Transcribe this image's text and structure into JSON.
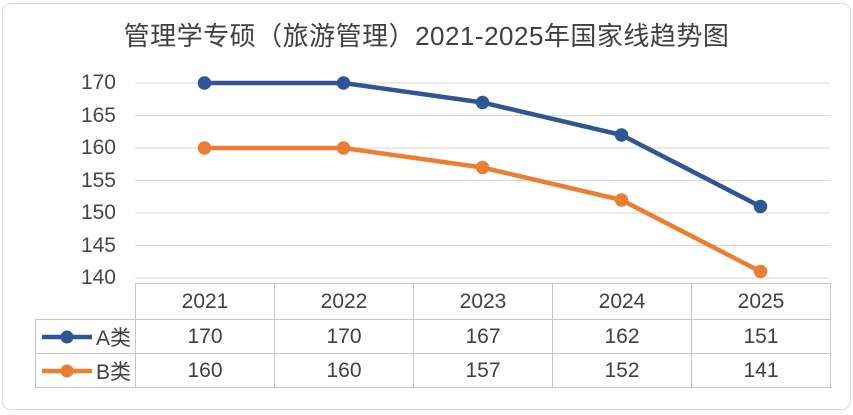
{
  "chart": {
    "title_color": "#404040",
    "frame_border_color": "#D9D9D9",
    "background_color": "#ffffff"
  },
  "chart_data": {
    "type": "line",
    "title": "管理学专硕（旅游管理）2021-2025年国家线趋势图",
    "categories": [
      "2021",
      "2022",
      "2023",
      "2024",
      "2025"
    ],
    "series": [
      {
        "name": "A类",
        "values": [
          170,
          170,
          167,
          162,
          151
        ],
        "color": "#2E5596"
      },
      {
        "name": "B类",
        "values": [
          160,
          160,
          157,
          152,
          141
        ],
        "color": "#ED7D31"
      }
    ],
    "xlabel": "",
    "ylabel": "",
    "ylim": [
      140,
      170
    ],
    "yticks": [
      170,
      165,
      160,
      155,
      150,
      145,
      140
    ],
    "grid": true,
    "gridline_color": "#D9D9D9",
    "axis_label_color": "#474747",
    "legend_position": "data-table-left",
    "data_table": true,
    "table_border_color": "#C6C6C6",
    "table_text_color": "#404040",
    "marker": "circle",
    "line_width": 4.5
  }
}
